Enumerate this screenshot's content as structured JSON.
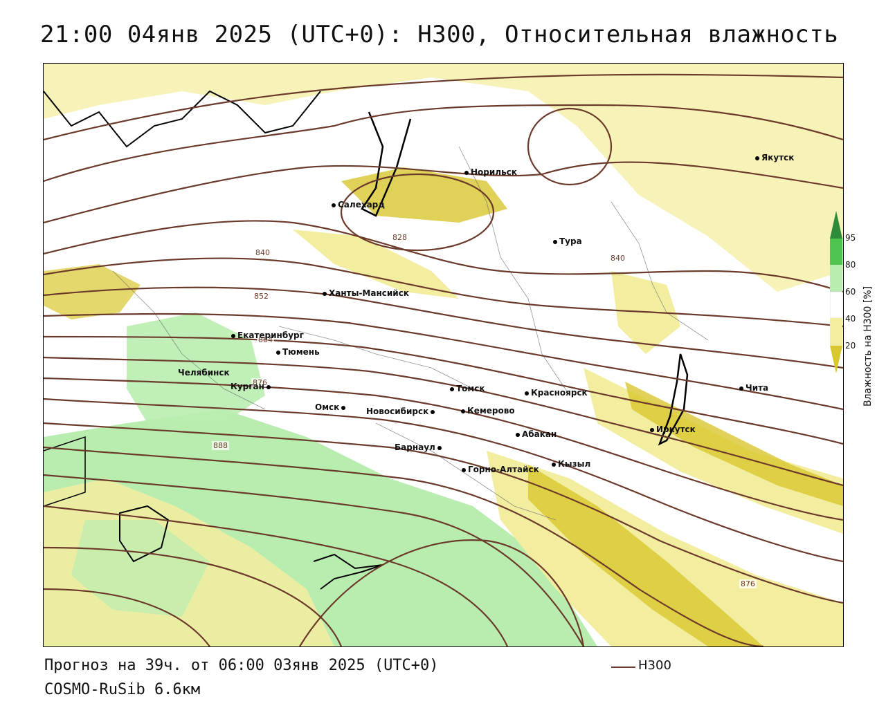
{
  "title": "21:00 04янв 2025 (UTC+0): H300, Относительная влажность",
  "footer": {
    "forecast": "Прогноз на 39ч. от 06:00 03янв 2025 (UTC+0)",
    "model": "COSMO-RuSib 6.6км",
    "line_legend": "H300"
  },
  "legend": {
    "title": "Влажность на H300 [%]",
    "ticks": [
      "95",
      "80",
      "60",
      "40",
      "20"
    ],
    "colors": {
      "c95": "#2e8b3a",
      "c80": "#4fc44f",
      "c60": "#b9edb0",
      "c40": "#ffffff",
      "c20": "#f3eda0",
      "dark": "#d8c72e"
    }
  },
  "cities": [
    {
      "name": "Якутск"
    },
    {
      "name": "Норильск"
    },
    {
      "name": "Салехард"
    },
    {
      "name": "Тура"
    },
    {
      "name": "Ханты-Мансийск"
    },
    {
      "name": "Екатеринбург"
    },
    {
      "name": "Тюмень"
    },
    {
      "name": "Челябинск"
    },
    {
      "name": "Курган"
    },
    {
      "name": "Омск"
    },
    {
      "name": "Новосибирск"
    },
    {
      "name": "Томск"
    },
    {
      "name": "Кемерово"
    },
    {
      "name": "Красноярск"
    },
    {
      "name": "Абакан"
    },
    {
      "name": "Барнаул"
    },
    {
      "name": "Горно-Алтайск"
    },
    {
      "name": "Кызыл"
    },
    {
      "name": "Иркутск"
    },
    {
      "name": "Чита"
    }
  ],
  "contour_labels": [
    "828",
    "840",
    "852",
    "864",
    "876",
    "888",
    "840",
    "876"
  ],
  "colors": {
    "contour": "#6b3a2a",
    "dry_fill": "#f3eda0",
    "moist_fill": "#b9edb0",
    "band_fill": "#d8c72e"
  }
}
